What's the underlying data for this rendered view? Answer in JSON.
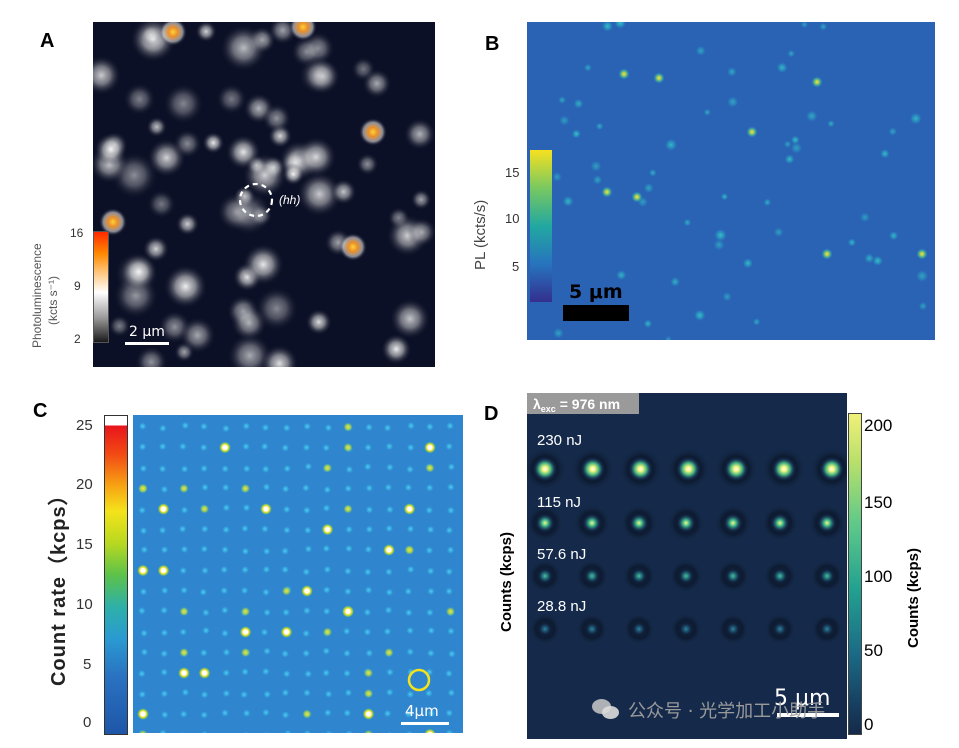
{
  "panels": {
    "a": {
      "letter": "A",
      "annotation": "(hh)",
      "scalebar": "2 μm",
      "colorbar_title": "Photoluminescence",
      "colorbar_unit": "(kcts s⁻¹)",
      "ticks": [
        "16",
        "9",
        "2"
      ]
    },
    "b": {
      "letter": "B",
      "colorbar_title": "PL (kcts/s)",
      "ticks": [
        "15",
        "10",
        "5"
      ],
      "scalebar": "5 μm"
    },
    "c": {
      "letter": "C",
      "colorbar_title": "Count rate（kcps）",
      "ticks": [
        "25",
        "20",
        "15",
        "10",
        "5",
        "0"
      ],
      "scalebar": "4μm"
    },
    "d": {
      "letter": "D",
      "header": "λexc = 976 nm",
      "header_main": "λ",
      "header_sub": "exc",
      "header_rest": " = 976 nm",
      "row_labels": [
        "230 nJ",
        "115 nJ",
        "57.6 nJ",
        "28.8 nJ"
      ],
      "left_label": "Counts (kcps)",
      "colorbar_title": "Counts (kcps)",
      "ticks": [
        "200",
        "150",
        "100",
        "50",
        "0"
      ],
      "scalebar": "5 μm"
    }
  },
  "watermark": {
    "text": "公众号 · 光学加工小助手"
  },
  "colors": {
    "panel_a_bg": "#0c1026",
    "panel_b_bg": "#2a62b4",
    "panel_c_bg": "#2f86cf",
    "panel_d_bg": "#152a4a"
  }
}
